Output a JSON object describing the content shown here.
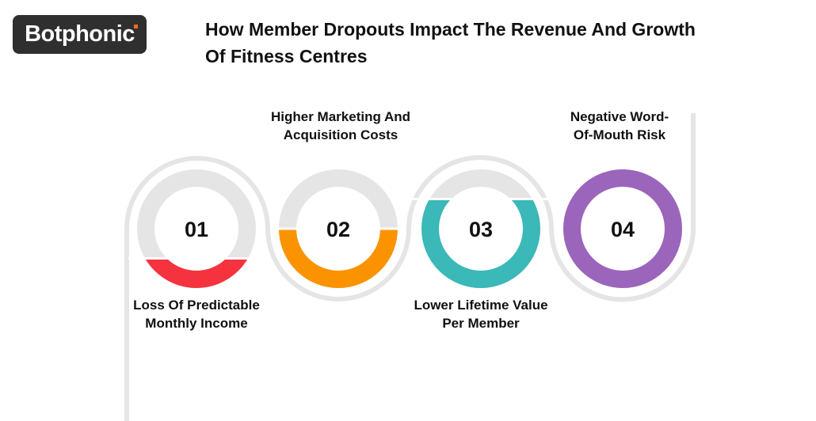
{
  "brand": {
    "logo_text": "Botphonic",
    "accent": "#f26b21"
  },
  "header": {
    "title": "How Member Dropouts Impact The Revenue And Growth Of Fitness Centres"
  },
  "steps": [
    {
      "number": "01",
      "label": "Loss Of Predictable Monthly Income",
      "color": "#f5333f",
      "fill_fraction": 0.25
    },
    {
      "number": "02",
      "label": "Higher Marketing And Acquisition Costs",
      "color": "#fb9300",
      "fill_fraction": 0.5
    },
    {
      "number": "03",
      "label": "Lower Lifetime Value Per Member",
      "color": "#3bb8b8",
      "fill_fraction": 0.75
    },
    {
      "number": "04",
      "label": "Negative Word-Of-Mouth Risk",
      "color": "#9b65bb",
      "fill_fraction": 1
    }
  ],
  "track_color": "#e5e5e5"
}
